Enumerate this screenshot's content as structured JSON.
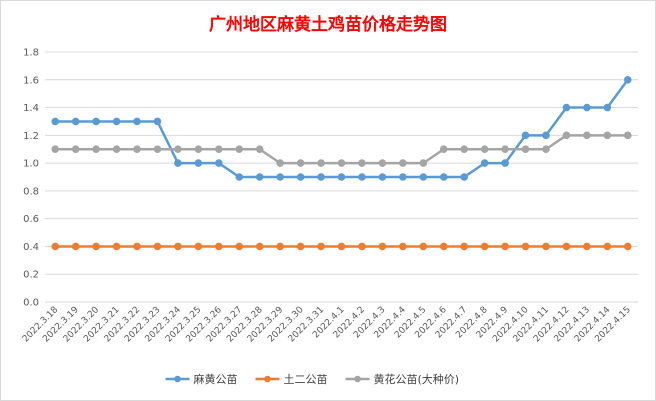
{
  "chart_data": {
    "type": "line",
    "title": "广州地区麻黄土鸡苗价格走势图",
    "xlabel": "",
    "ylabel": "",
    "ylim": [
      0,
      1.8
    ],
    "yticks": [
      "0.0",
      "0.2",
      "0.4",
      "0.6",
      "0.8",
      "1.0",
      "1.2",
      "1.4",
      "1.6",
      "1.8"
    ],
    "grid": true,
    "legend_position": "bottom",
    "categories": [
      "2022.3.18",
      "2022.3.19",
      "2022.3.20",
      "2022.3.21",
      "2022.3.22",
      "2022.3.23",
      "2022.3.24",
      "2022.3.25",
      "2022.3.26",
      "2022.3.27",
      "2022.3.28",
      "2022.3.29",
      "2022.3.30",
      "2022.3.31",
      "2022.4.1",
      "2022.4.2",
      "2022.4.3",
      "2022.4.4",
      "2022.4.5",
      "2022.4.6",
      "2022.4.7",
      "2022.4.8",
      "2022.4.9",
      "2022.4.10",
      "2022.4.11",
      "2022.4.12",
      "2022.4.13",
      "2022.4.14",
      "2022.4.15"
    ],
    "series": [
      {
        "name": "麻黄公苗",
        "color": "#5b9bd5",
        "values": [
          1.3,
          1.3,
          1.3,
          1.3,
          1.3,
          1.3,
          1.0,
          1.0,
          1.0,
          0.9,
          0.9,
          0.9,
          0.9,
          0.9,
          0.9,
          0.9,
          0.9,
          0.9,
          0.9,
          0.9,
          0.9,
          1.0,
          1.0,
          1.2,
          1.2,
          1.4,
          1.4,
          1.4,
          1.6
        ]
      },
      {
        "name": "土二公苗",
        "color": "#ed7d31",
        "values": [
          0.4,
          0.4,
          0.4,
          0.4,
          0.4,
          0.4,
          0.4,
          0.4,
          0.4,
          0.4,
          0.4,
          0.4,
          0.4,
          0.4,
          0.4,
          0.4,
          0.4,
          0.4,
          0.4,
          0.4,
          0.4,
          0.4,
          0.4,
          0.4,
          0.4,
          0.4,
          0.4,
          0.4,
          0.4
        ]
      },
      {
        "name": "黄花公苗(大种价)",
        "color": "#a5a5a5",
        "values": [
          1.1,
          1.1,
          1.1,
          1.1,
          1.1,
          1.1,
          1.1,
          1.1,
          1.1,
          1.1,
          1.1,
          1.0,
          1.0,
          1.0,
          1.0,
          1.0,
          1.0,
          1.0,
          1.0,
          1.1,
          1.1,
          1.1,
          1.1,
          1.1,
          1.1,
          1.2,
          1.2,
          1.2,
          1.2
        ]
      }
    ]
  }
}
